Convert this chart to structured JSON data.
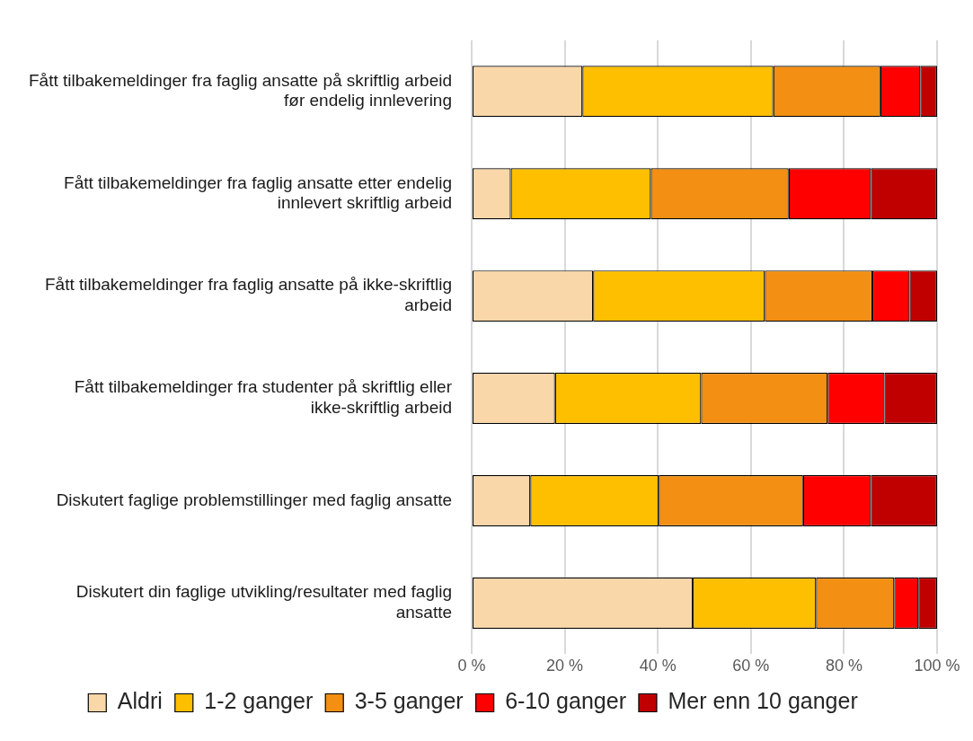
{
  "chart_data": {
    "type": "bar",
    "orientation": "horizontal",
    "stacked": true,
    "categories": [
      "Fått tilbakemeldinger fra faglig ansatte på skriftlig arbeid før endelig innlevering",
      "Fått tilbakemeldinger fra faglig ansatte etter endelig innlevert skriftlig arbeid",
      "Fått tilbakemeldinger fra faglig ansatte på ikke-skriftlig arbeid",
      "Fått tilbakemeldinger fra studenter på skriftlig eller ikke-skriftlig arbeid",
      "Diskutert faglige problemstillinger med faglig ansatte",
      "Diskutert din faglige utvikling/resultater med faglig ansatte"
    ],
    "series": [
      {
        "name": "Aldri",
        "color": "#f9d7a9",
        "values": [
          23.8,
          8.4,
          26.1,
          17.9,
          12.6,
          47.5
        ]
      },
      {
        "name": "1-2 ganger",
        "color": "#fdbf00",
        "values": [
          41.0,
          30.1,
          36.9,
          31.4,
          27.6,
          26.5
        ]
      },
      {
        "name": "3-5 ganger",
        "color": "#f38f12",
        "values": [
          23.0,
          29.6,
          23.1,
          27.2,
          31.0,
          16.8
        ]
      },
      {
        "name": "6-10 ganger",
        "color": "#fe0000",
        "values": [
          8.6,
          17.7,
          8.0,
          12.2,
          14.6,
          5.2
        ]
      },
      {
        "name": "Mer enn 10 ganger",
        "color": "#c00000",
        "values": [
          3.6,
          14.2,
          5.9,
          11.3,
          14.2,
          4.0
        ]
      }
    ],
    "xlim": [
      0,
      100
    ],
    "xticks": [
      {
        "value": 0,
        "label": "0 %"
      },
      {
        "value": 20,
        "label": "20 %"
      },
      {
        "value": 40,
        "label": "40 %"
      },
      {
        "value": 60,
        "label": "60 %"
      },
      {
        "value": 80,
        "label": "80 %"
      },
      {
        "value": 100,
        "label": "100 %"
      }
    ],
    "grid": "x",
    "legend": "bottom"
  }
}
